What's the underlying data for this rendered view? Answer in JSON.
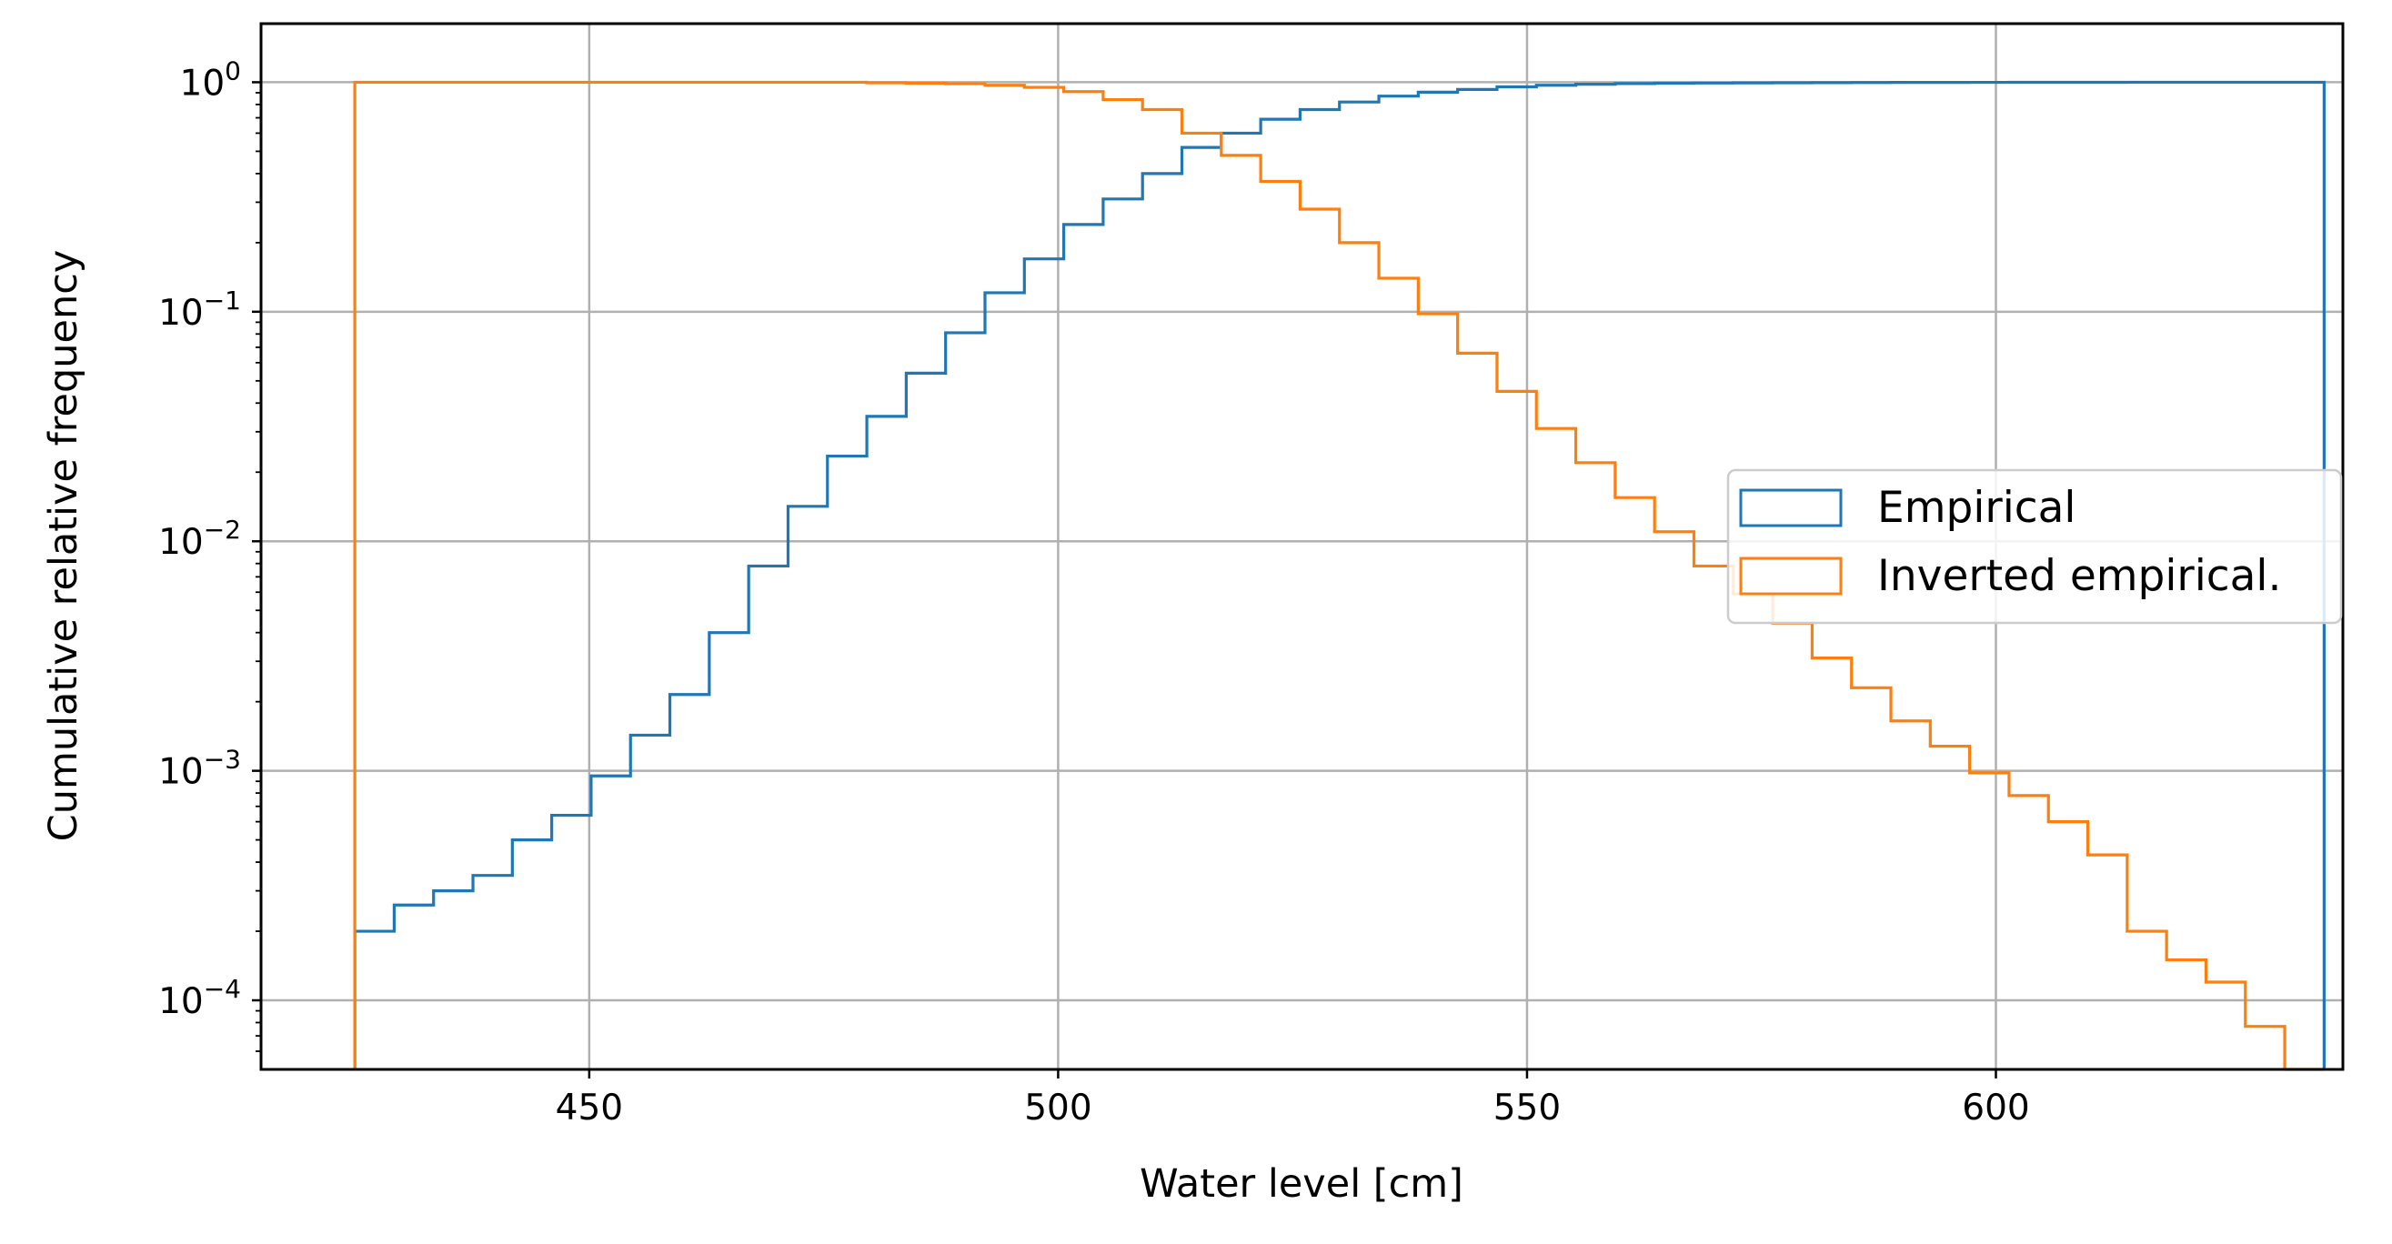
{
  "chart_data": {
    "type": "line",
    "subtype": "cumulative-histogram-step",
    "title": "",
    "xlabel": "Water level [cm]",
    "ylabel": "Cumulative relative frequency",
    "xlim": [
      415,
      637
    ],
    "ylim": [
      5e-05,
      1.8
    ],
    "yscale": "log",
    "grid": true,
    "legend_position": "center-right",
    "x_ticks": [
      {
        "value": 450,
        "label": "450"
      },
      {
        "value": 500,
        "label": "500"
      },
      {
        "value": 550,
        "label": "550"
      },
      {
        "value": 600,
        "label": "600"
      }
    ],
    "y_ticks": [
      {
        "value": 0.0001,
        "base": "10",
        "exponent": "−4"
      },
      {
        "value": 0.001,
        "base": "10",
        "exponent": "−3"
      },
      {
        "value": 0.01,
        "base": "10",
        "exponent": "−2"
      },
      {
        "value": 0.1,
        "base": "10",
        "exponent": "−1"
      },
      {
        "value": 1,
        "base": "10",
        "exponent": "0"
      }
    ],
    "bin_edges": [
      425,
      429.2,
      433.4,
      437.6,
      441.8,
      446,
      450.2,
      454.4,
      458.6,
      462.8,
      467,
      471.2,
      475.4,
      479.6,
      483.8,
      488,
      492.2,
      496.4,
      500.6,
      504.8,
      509,
      513.2,
      517.4,
      521.6,
      525.8,
      530,
      534.2,
      538.4,
      542.6,
      546.8,
      551,
      555.2,
      559.4,
      563.6,
      567.8,
      572,
      576.2,
      580.4,
      584.6,
      588.8,
      593,
      597.2,
      601.4,
      605.6,
      609.8,
      614,
      618.2,
      622.4,
      626.6,
      630.8,
      635
    ],
    "series": [
      {
        "name": "Empirical",
        "color": "#1f77b4",
        "values": [
          0.0002,
          0.00026,
          0.0003,
          0.00035,
          0.0005,
          0.00064,
          0.00095,
          0.00143,
          0.00215,
          0.004,
          0.0078,
          0.0142,
          0.0235,
          0.035,
          0.054,
          0.081,
          0.121,
          0.17,
          0.24,
          0.31,
          0.4,
          0.52,
          0.6,
          0.69,
          0.76,
          0.82,
          0.87,
          0.905,
          0.93,
          0.955,
          0.97,
          0.98,
          0.987,
          0.99,
          0.992,
          0.994,
          0.995,
          0.996,
          0.997,
          0.998,
          0.9985,
          0.999,
          0.9993,
          0.9995,
          0.9997,
          0.9998,
          0.9999,
          0.99995,
          0.99998,
          1.0
        ]
      },
      {
        "name": "Inverted empirical.",
        "color": "#ff7f0e",
        "values": [
          1.0,
          1.0,
          1.0,
          1.0,
          1.0,
          1.0,
          1.0,
          1.0,
          1.0,
          1.0,
          1.0,
          1.0,
          1.0,
          0.995,
          0.99,
          0.985,
          0.97,
          0.95,
          0.91,
          0.84,
          0.76,
          0.6,
          0.48,
          0.37,
          0.28,
          0.2,
          0.14,
          0.098,
          0.066,
          0.045,
          0.031,
          0.022,
          0.0155,
          0.011,
          0.0078,
          0.0059,
          0.0044,
          0.0031,
          0.0023,
          0.00165,
          0.00128,
          0.00098,
          0.00078,
          0.0006,
          0.00043,
          0.0002,
          0.00015,
          0.00012,
          7.7e-05,
          5e-05
        ]
      }
    ]
  }
}
